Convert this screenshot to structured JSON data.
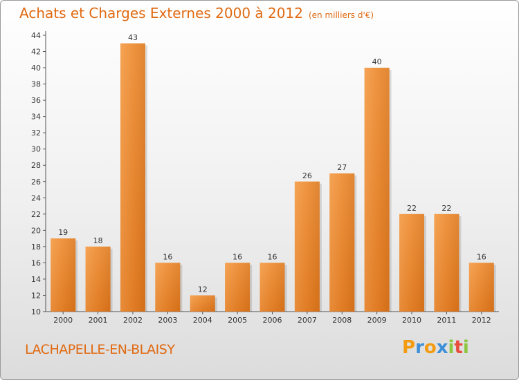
{
  "chart_data": {
    "type": "bar",
    "title": "Achats et Charges Externes 2000 à 2012",
    "subtitle": "(en milliers d'€)",
    "categories": [
      "2000",
      "2001",
      "2002",
      "2003",
      "2004",
      "2005",
      "2006",
      "2007",
      "2008",
      "2009",
      "2010",
      "2011",
      "2012"
    ],
    "values": [
      19,
      18,
      43,
      16,
      12,
      16,
      16,
      26,
      27,
      40,
      22,
      22,
      16
    ],
    "ylim": [
      10,
      44
    ],
    "yticks": [
      10,
      12,
      14,
      16,
      18,
      20,
      22,
      24,
      26,
      28,
      30,
      32,
      34,
      36,
      38,
      40,
      42,
      44
    ],
    "grid": false,
    "bar_color": "#e8842c"
  },
  "commune": "LACHAPELLE-EN-BLAISY",
  "logo": {
    "letters": [
      "P",
      "r",
      "o",
      "x",
      "i",
      "t",
      "i"
    ],
    "colors": [
      "#f39c12",
      "#3d8fd8",
      "#f39c12",
      "#3d8fd8",
      "#8cc63f",
      "#e74c3c",
      "#8cc63f"
    ]
  }
}
